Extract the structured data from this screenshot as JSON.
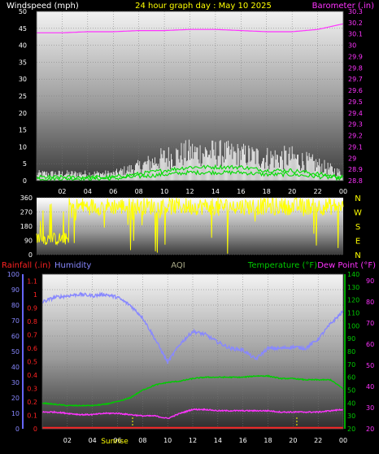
{
  "header": {
    "left_label": "Windspeed (mph)",
    "title": "24 hour graph day : May 10 2025",
    "right_label": "Barometer (.in)"
  },
  "colors": {
    "windspeed": "#ffffff",
    "gust_fill": "#ffffff",
    "wind_green": "#00dd00",
    "barometer": "#ff33ff",
    "direction": "#ffff00",
    "humidity": "#8888ff",
    "temperature": "#00cc00",
    "dewpoint": "#ff33ff",
    "rainfall": "#ff2222",
    "label_yellow": "#ffff00",
    "aqi": "#aaaa88",
    "rain_axis": "#ff2222",
    "dew_axis": "#ff33ff"
  },
  "chart_data": [
    {
      "type": "line",
      "name": "wind-barometer",
      "ylabel": "Windspeed (mph)",
      "y2label": "Barometer (.in)",
      "x_ticks": [
        "02",
        "04",
        "06",
        "08",
        "10",
        "12",
        "14",
        "16",
        "18",
        "20",
        "22",
        "00"
      ],
      "ylim": [
        0,
        50
      ],
      "y_ticks": [
        0,
        5,
        10,
        15,
        20,
        25,
        30,
        35,
        40,
        45,
        50
      ],
      "y2lim": [
        28.8,
        30.3
      ],
      "y2_ticks": [
        "28.8",
        "28.9",
        "29",
        "29.1",
        "29.2",
        "29.3",
        "29.4",
        "29.5",
        "29.6",
        "29.7",
        "29.8",
        "29.9",
        "30",
        "30.1",
        "30.2",
        "30.3"
      ],
      "hours": [
        0,
        2,
        4,
        6,
        8,
        10,
        12,
        14,
        16,
        18,
        20,
        22,
        24
      ],
      "barometer": [
        30.11,
        30.11,
        30.12,
        30.12,
        30.13,
        30.13,
        30.14,
        30.14,
        30.13,
        30.12,
        30.12,
        30.14,
        30.19
      ],
      "windspeed_avg": [
        1,
        1,
        1,
        1,
        2,
        3,
        4,
        4,
        4,
        3,
        3,
        2,
        1
      ],
      "windspeed_peak": [
        3,
        3,
        3,
        3,
        6,
        10,
        12,
        12,
        11,
        10,
        10,
        7,
        3
      ]
    },
    {
      "type": "scatter",
      "name": "wind-direction",
      "ylim": [
        0,
        360
      ],
      "y_ticks": [
        0,
        90,
        180,
        270,
        360
      ],
      "compass": [
        "N",
        "W",
        "S",
        "E",
        "N"
      ]
    },
    {
      "type": "line",
      "name": "temp-humidity",
      "x_ticks": [
        "02",
        "04",
        "06",
        "08",
        "10",
        "12",
        "14",
        "16",
        "18",
        "20",
        "22",
        "00"
      ],
      "rain_label": "Rainfall (.in)",
      "humidity_label": "Humidity",
      "aqi_label": "AQI",
      "temp_label": "Temperature (°F)",
      "dew_label": "Dew Point (°F)",
      "sunrise_label": "Sunrise",
      "humidity_ticks": [
        0,
        10,
        20,
        30,
        40,
        50,
        60,
        70,
        80,
        90,
        100
      ],
      "rain_ticks": [
        "0",
        "0.1",
        "0.2",
        "0.3",
        "0.4",
        "0.5",
        "0.6",
        "0.7",
        "0.8",
        "0.9",
        "1",
        "1.1"
      ],
      "temp_ticks": [
        20,
        30,
        40,
        50,
        60,
        70,
        80,
        90,
        100,
        110,
        120,
        130,
        140
      ],
      "temp_right_ticks": [
        20,
        30,
        40,
        50,
        60,
        70,
        80,
        90
      ],
      "hours": [
        0,
        1,
        2,
        3,
        4,
        5,
        6,
        7,
        8,
        9,
        10,
        11,
        12,
        13,
        14,
        15,
        16,
        17,
        18,
        19,
        20,
        21,
        22,
        23,
        24
      ],
      "humidity": [
        82,
        85,
        86,
        87,
        86,
        87,
        85,
        80,
        72,
        58,
        43,
        55,
        63,
        61,
        56,
        52,
        51,
        45,
        52,
        52,
        53,
        52,
        58,
        68,
        76
      ],
      "temperature": [
        40,
        39,
        38,
        38,
        38,
        39,
        41,
        44,
        50,
        54,
        56,
        57,
        59,
        60,
        60,
        60,
        60,
        61,
        61,
        59,
        59,
        58,
        58,
        58,
        51
      ],
      "dewpoint": [
        33,
        33,
        32,
        31,
        31,
        32,
        32,
        31,
        30,
        30,
        28,
        32,
        35,
        35,
        34,
        34,
        34,
        34,
        34,
        33,
        33,
        33,
        33,
        34,
        35
      ],
      "rainfall": [
        0,
        0,
        0,
        0,
        0,
        0,
        0,
        0,
        0,
        0,
        0,
        0,
        0,
        0,
        0,
        0,
        0,
        0,
        0,
        0,
        0,
        0,
        0,
        0,
        0
      ]
    }
  ]
}
